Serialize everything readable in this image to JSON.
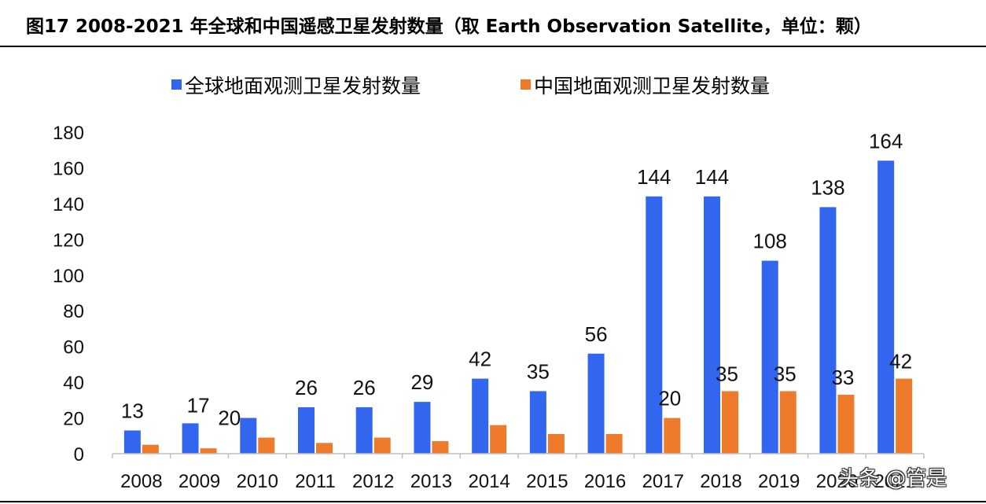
{
  "figure": {
    "title": "图17 2008-2021 年全球和中国遥感卫星发射数量（取 Earth Observation Satellite，单位：颗）"
  },
  "watermark": "头条 @管是",
  "colors": {
    "global": "#3366ee",
    "china": "#ee7a2c",
    "axis": "#bfbfbf"
  },
  "chart_data": {
    "type": "bar",
    "title": "",
    "xlabel": "",
    "ylabel": "",
    "categories": [
      "2008",
      "2009",
      "2010",
      "2011",
      "2012",
      "2013",
      "2014",
      "2015",
      "2016",
      "2017",
      "2018",
      "2019",
      "2020",
      "2021"
    ],
    "series": [
      {
        "name": "全球地面观测卫星发射数量",
        "values": [
          13,
          17,
          20,
          26,
          26,
          29,
          42,
          35,
          56,
          144,
          144,
          108,
          138,
          164
        ]
      },
      {
        "name": "中国地面观测卫星发射数量",
        "values": [
          5,
          3,
          9,
          6,
          9,
          7,
          16,
          11,
          11,
          20,
          35,
          35,
          33,
          42
        ]
      }
    ],
    "data_labels": [
      {
        "text": "13",
        "series": 0,
        "index": 0
      },
      {
        "text": "17",
        "series": 0,
        "index": 1
      },
      {
        "text": "20",
        "series": 0,
        "index": 2
      },
      {
        "text": "26",
        "series": 0,
        "index": 3
      },
      {
        "text": "26",
        "series": 0,
        "index": 4
      },
      {
        "text": "29",
        "series": 0,
        "index": 5
      },
      {
        "text": "42",
        "series": 0,
        "index": 6
      },
      {
        "text": "35",
        "series": 0,
        "index": 7
      },
      {
        "text": "56",
        "series": 0,
        "index": 8
      },
      {
        "text": "144",
        "series": 0,
        "index": 9
      },
      {
        "text": "144",
        "series": 0,
        "index": 10
      },
      {
        "text": "108",
        "series": 0,
        "index": 11
      },
      {
        "text": "138",
        "series": 0,
        "index": 12
      },
      {
        "text": "164",
        "series": 0,
        "index": 13
      },
      {
        "text": "20",
        "series": 1,
        "index": 9
      },
      {
        "text": "35",
        "series": 1,
        "index": 10
      },
      {
        "text": "35",
        "series": 1,
        "index": 11
      },
      {
        "text": "33",
        "series": 1,
        "index": 12
      },
      {
        "text": "42",
        "series": 1,
        "index": 13
      }
    ],
    "y_ticks": [
      0,
      20,
      40,
      60,
      80,
      100,
      120,
      140,
      160,
      180
    ],
    "ylim": [
      0,
      180
    ],
    "grid": false,
    "legend": "top-center"
  }
}
